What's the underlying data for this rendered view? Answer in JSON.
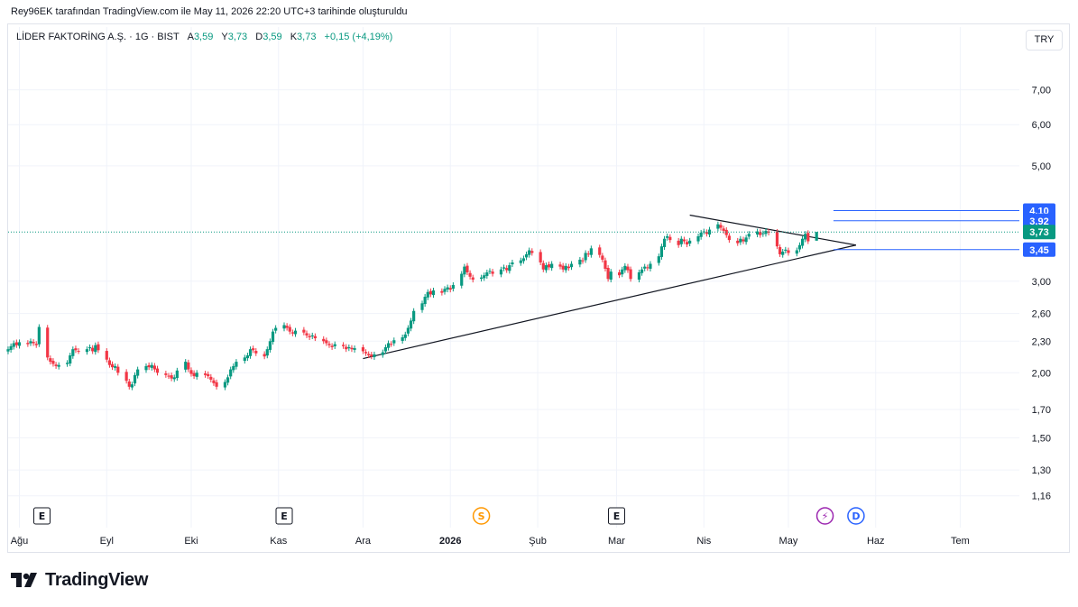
{
  "credit": "Rey96EK tarafından TradingView.com ile May 11, 2026 22:20 UTC+3 tarihinde oluşturuldu",
  "legend": {
    "symbol": "LİDER FAKTORİNG A.Ş. · 1G · BIST",
    "open_label": "A",
    "open": "3,59",
    "high_label": "Y",
    "high": "3,73",
    "low_label": "D",
    "low": "3,59",
    "close_label": "K",
    "close": "3,73",
    "change": "+0,15 (+4,19%)"
  },
  "currency_button": "TRY",
  "brand": "TradingView",
  "colors": {
    "up": "#089981",
    "down": "#f23645",
    "line": "#2962ff",
    "trendline": "#131722"
  },
  "chart_data": {
    "type": "candlestick",
    "title": "LİDER FAKTORİNG A.Ş. · 1G · BIST",
    "y_scale": "log",
    "ylim": [
      1.1,
      8.2
    ],
    "y_ticks": [
      {
        "value": 7.0,
        "label": "7,00"
      },
      {
        "value": 6.0,
        "label": "6,00"
      },
      {
        "value": 5.0,
        "label": "5,00"
      },
      {
        "value": 3.0,
        "label": "3,00"
      },
      {
        "value": 2.6,
        "label": "2,60"
      },
      {
        "value": 2.3,
        "label": "2,30"
      },
      {
        "value": 2.0,
        "label": "2,00"
      },
      {
        "value": 1.7,
        "label": "1,70"
      },
      {
        "value": 1.5,
        "label": "1,50"
      },
      {
        "value": 1.3,
        "label": "1,30"
      },
      {
        "value": 1.16,
        "label": "1,16"
      }
    ],
    "x_axis": {
      "start": "2025-07-28",
      "end": "2026-07-22",
      "ticks": [
        {
          "date": "2025-08-01",
          "label": "Ağu"
        },
        {
          "date": "2025-09-01",
          "label": "Eyl"
        },
        {
          "date": "2025-10-01",
          "label": "Eki"
        },
        {
          "date": "2025-11-01",
          "label": "Kas"
        },
        {
          "date": "2025-12-01",
          "label": "Ara"
        },
        {
          "date": "2026-01-01",
          "label": "2026",
          "bold": true
        },
        {
          "date": "2026-02-01",
          "label": "Şub"
        },
        {
          "date": "2026-03-01",
          "label": "Mar"
        },
        {
          "date": "2026-04-01",
          "label": "Nis"
        },
        {
          "date": "2026-05-01",
          "label": "May"
        },
        {
          "date": "2026-06-01",
          "label": "Haz"
        },
        {
          "date": "2026-07-01",
          "label": "Tem"
        }
      ]
    },
    "candles": [
      {
        "date": "2025-07-28",
        "close": 2.22
      },
      {
        "date": "2025-07-29",
        "close": 2.25
      },
      {
        "date": "2025-07-30",
        "close": 2.28
      },
      {
        "date": "2025-07-31",
        "close": 2.26
      },
      {
        "date": "2025-08-01",
        "close": 2.29
      },
      {
        "date": "2025-08-04",
        "close": 2.27
      },
      {
        "date": "2025-08-05",
        "close": 2.3
      },
      {
        "date": "2025-08-06",
        "close": 2.28
      },
      {
        "date": "2025-08-07",
        "close": 2.26
      },
      {
        "date": "2025-08-08",
        "close": 2.45
      },
      {
        "date": "2025-08-11",
        "close": 2.14
      },
      {
        "date": "2025-08-12",
        "close": 2.1
      },
      {
        "date": "2025-08-13",
        "close": 2.08
      },
      {
        "date": "2025-08-14",
        "close": 2.06
      },
      {
        "date": "2025-08-15",
        "close": 2.07
      },
      {
        "date": "2025-08-18",
        "close": 2.09
      },
      {
        "date": "2025-08-19",
        "close": 2.16
      },
      {
        "date": "2025-08-20",
        "close": 2.22
      },
      {
        "date": "2025-08-21",
        "close": 2.21
      },
      {
        "date": "2025-08-22",
        "close": 2.2
      },
      {
        "date": "2025-08-25",
        "close": 2.22
      },
      {
        "date": "2025-08-26",
        "close": 2.24
      },
      {
        "date": "2025-08-27",
        "close": 2.2
      },
      {
        "date": "2025-08-28",
        "close": 2.26
      },
      {
        "date": "2025-08-29",
        "close": 2.21
      },
      {
        "date": "2025-09-01",
        "close": 2.12
      },
      {
        "date": "2025-09-02",
        "close": 2.07
      },
      {
        "date": "2025-09-03",
        "close": 2.05
      },
      {
        "date": "2025-09-04",
        "close": 2.06
      },
      {
        "date": "2025-09-05",
        "close": 2.0
      },
      {
        "date": "2025-09-08",
        "close": 1.93
      },
      {
        "date": "2025-09-09",
        "close": 1.88
      },
      {
        "date": "2025-09-10",
        "close": 1.9
      },
      {
        "date": "2025-09-11",
        "close": 1.98
      },
      {
        "date": "2025-09-12",
        "close": 2.03
      },
      {
        "date": "2025-09-15",
        "close": 2.06
      },
      {
        "date": "2025-09-16",
        "close": 2.05
      },
      {
        "date": "2025-09-17",
        "close": 2.07
      },
      {
        "date": "2025-09-18",
        "close": 2.03
      },
      {
        "date": "2025-09-19",
        "close": 2.0
      },
      {
        "date": "2025-09-22",
        "close": 1.98
      },
      {
        "date": "2025-09-23",
        "close": 1.97
      },
      {
        "date": "2025-09-24",
        "close": 1.95
      },
      {
        "date": "2025-09-25",
        "close": 1.96
      },
      {
        "date": "2025-09-26",
        "close": 2.02
      },
      {
        "date": "2025-09-29",
        "close": 2.1
      },
      {
        "date": "2025-09-30",
        "close": 2.03
      },
      {
        "date": "2025-10-01",
        "close": 1.99
      },
      {
        "date": "2025-10-02",
        "close": 1.97
      },
      {
        "date": "2025-10-03",
        "close": 2.0
      },
      {
        "date": "2025-10-06",
        "close": 1.98
      },
      {
        "date": "2025-10-07",
        "close": 1.97
      },
      {
        "date": "2025-10-08",
        "close": 1.94
      },
      {
        "date": "2025-10-09",
        "close": 1.91
      },
      {
        "date": "2025-10-10",
        "close": 1.88
      },
      {
        "date": "2025-10-13",
        "close": 1.92
      },
      {
        "date": "2025-10-14",
        "close": 1.96
      },
      {
        "date": "2025-10-15",
        "close": 2.03
      },
      {
        "date": "2025-10-16",
        "close": 2.06
      },
      {
        "date": "2025-10-17",
        "close": 2.1
      },
      {
        "date": "2025-10-20",
        "close": 2.14
      },
      {
        "date": "2025-10-21",
        "close": 2.16
      },
      {
        "date": "2025-10-22",
        "close": 2.22
      },
      {
        "date": "2025-10-23",
        "close": 2.21
      },
      {
        "date": "2025-10-24",
        "close": 2.18
      },
      {
        "date": "2025-10-27",
        "close": 2.15
      },
      {
        "date": "2025-10-28",
        "close": 2.22
      },
      {
        "date": "2025-10-29",
        "close": 2.3
      },
      {
        "date": "2025-10-30",
        "close": 2.4
      },
      {
        "date": "2025-10-31",
        "close": 2.44
      },
      {
        "date": "2025-11-03",
        "close": 2.47
      },
      {
        "date": "2025-11-04",
        "close": 2.44
      },
      {
        "date": "2025-11-05",
        "close": 2.4
      },
      {
        "date": "2025-11-06",
        "close": 2.38
      },
      {
        "date": "2025-11-07",
        "close": 2.41
      },
      {
        "date": "2025-11-10",
        "close": 2.39
      },
      {
        "date": "2025-11-11",
        "close": 2.36
      },
      {
        "date": "2025-11-12",
        "close": 2.34
      },
      {
        "date": "2025-11-13",
        "close": 2.36
      },
      {
        "date": "2025-11-14",
        "close": 2.33
      },
      {
        "date": "2025-11-17",
        "close": 2.3
      },
      {
        "date": "2025-11-18",
        "close": 2.28
      },
      {
        "date": "2025-11-19",
        "close": 2.26
      },
      {
        "date": "2025-11-20",
        "close": 2.24
      },
      {
        "date": "2025-11-21",
        "close": 2.27
      },
      {
        "date": "2025-11-24",
        "close": 2.25
      },
      {
        "date": "2025-11-25",
        "close": 2.22
      },
      {
        "date": "2025-11-26",
        "close": 2.24
      },
      {
        "date": "2025-11-27",
        "close": 2.22
      },
      {
        "date": "2025-11-28",
        "close": 2.23
      },
      {
        "date": "2025-12-01",
        "close": 2.2
      },
      {
        "date": "2025-12-02",
        "close": 2.18
      },
      {
        "date": "2025-12-03",
        "close": 2.16
      },
      {
        "date": "2025-12-04",
        "close": 2.15
      },
      {
        "date": "2025-12-05",
        "close": 2.17
      },
      {
        "date": "2025-12-08",
        "close": 2.19
      },
      {
        "date": "2025-12-09",
        "close": 2.24
      },
      {
        "date": "2025-12-10",
        "close": 2.28
      },
      {
        "date": "2025-12-11",
        "close": 2.27
      },
      {
        "date": "2025-12-12",
        "close": 2.31
      },
      {
        "date": "2025-12-15",
        "close": 2.34
      },
      {
        "date": "2025-12-16",
        "close": 2.37
      },
      {
        "date": "2025-12-17",
        "close": 2.44
      },
      {
        "date": "2025-12-18",
        "close": 2.52
      },
      {
        "date": "2025-12-19",
        "close": 2.63
      },
      {
        "date": "2025-12-22",
        "close": 2.72
      },
      {
        "date": "2025-12-23",
        "close": 2.8
      },
      {
        "date": "2025-12-24",
        "close": 2.86
      },
      {
        "date": "2025-12-25",
        "close": 2.83
      },
      {
        "date": "2025-12-26",
        "close": 2.88
      },
      {
        "date": "2025-12-29",
        "close": 2.85
      },
      {
        "date": "2025-12-30",
        "close": 2.9
      },
      {
        "date": "2025-12-31",
        "close": 2.92
      },
      {
        "date": "2026-01-01",
        "close": 2.89
      },
      {
        "date": "2026-01-02",
        "close": 2.95
      },
      {
        "date": "2026-01-05",
        "close": 3.1
      },
      {
        "date": "2026-01-06",
        "close": 3.2
      },
      {
        "date": "2026-01-07",
        "close": 3.12
      },
      {
        "date": "2026-01-08",
        "close": 3.06
      },
      {
        "date": "2026-01-09",
        "close": 3.02
      },
      {
        "date": "2026-01-12",
        "close": 3.05
      },
      {
        "date": "2026-01-13",
        "close": 3.08
      },
      {
        "date": "2026-01-14",
        "close": 3.12
      },
      {
        "date": "2026-01-15",
        "close": 3.14
      },
      {
        "date": "2026-01-16",
        "close": 3.1
      },
      {
        "date": "2026-01-19",
        "close": 3.16
      },
      {
        "date": "2026-01-20",
        "close": 3.19
      },
      {
        "date": "2026-01-21",
        "close": 3.15
      },
      {
        "date": "2026-01-22",
        "close": 3.22
      },
      {
        "date": "2026-01-23",
        "close": 3.26
      },
      {
        "date": "2026-01-26",
        "close": 3.29
      },
      {
        "date": "2026-01-27",
        "close": 3.32
      },
      {
        "date": "2026-01-28",
        "close": 3.38
      },
      {
        "date": "2026-01-29",
        "close": 3.44
      },
      {
        "date": "2026-01-30",
        "close": 3.4
      },
      {
        "date": "2026-02-02",
        "close": 3.26
      },
      {
        "date": "2026-02-03",
        "close": 3.16
      },
      {
        "date": "2026-02-04",
        "close": 3.22
      },
      {
        "date": "2026-02-05",
        "close": 3.19
      },
      {
        "date": "2026-02-06",
        "close": 3.24
      },
      {
        "date": "2026-02-09",
        "close": 3.2
      },
      {
        "date": "2026-02-10",
        "close": 3.16
      },
      {
        "date": "2026-02-11",
        "close": 3.21
      },
      {
        "date": "2026-02-12",
        "close": 3.18
      },
      {
        "date": "2026-02-13",
        "close": 3.24
      },
      {
        "date": "2026-02-16",
        "close": 3.3
      },
      {
        "date": "2026-02-17",
        "close": 3.28
      },
      {
        "date": "2026-02-18",
        "close": 3.4
      },
      {
        "date": "2026-02-19",
        "close": 3.38
      },
      {
        "date": "2026-02-20",
        "close": 3.47
      },
      {
        "date": "2026-02-23",
        "close": 3.37
      },
      {
        "date": "2026-02-24",
        "close": 3.3
      },
      {
        "date": "2026-02-25",
        "close": 3.17
      },
      {
        "date": "2026-02-26",
        "close": 3.03
      },
      {
        "date": "2026-02-27",
        "close": 3.13
      },
      {
        "date": "2026-03-02",
        "close": 3.08
      },
      {
        "date": "2026-03-03",
        "close": 3.16
      },
      {
        "date": "2026-03-04",
        "close": 3.21
      },
      {
        "date": "2026-03-05",
        "close": 3.15
      },
      {
        "date": "2026-03-06",
        "close": 3.03
      },
      {
        "date": "2026-03-09",
        "close": 3.12
      },
      {
        "date": "2026-03-10",
        "close": 3.16
      },
      {
        "date": "2026-03-11",
        "close": 3.2
      },
      {
        "date": "2026-03-12",
        "close": 3.18
      },
      {
        "date": "2026-03-13",
        "close": 3.24
      },
      {
        "date": "2026-03-16",
        "close": 3.35
      },
      {
        "date": "2026-03-17",
        "close": 3.5
      },
      {
        "date": "2026-03-18",
        "close": 3.62
      },
      {
        "date": "2026-03-19",
        "close": 3.66
      },
      {
        "date": "2026-03-20",
        "close": 3.6
      },
      {
        "date": "2026-03-23",
        "close": 3.52
      },
      {
        "date": "2026-03-24",
        "close": 3.62
      },
      {
        "date": "2026-03-25",
        "close": 3.58
      },
      {
        "date": "2026-03-26",
        "close": 3.53
      },
      {
        "date": "2026-03-27",
        "close": 3.59
      },
      {
        "date": "2026-03-30",
        "close": 3.66
      },
      {
        "date": "2026-03-31",
        "close": 3.72
      },
      {
        "date": "2026-04-01",
        "close": 3.74
      },
      {
        "date": "2026-04-02",
        "close": 3.7
      },
      {
        "date": "2026-04-03",
        "close": 3.77
      },
      {
        "date": "2026-04-06",
        "close": 3.86
      },
      {
        "date": "2026-04-07",
        "close": 3.8
      },
      {
        "date": "2026-04-08",
        "close": 3.75
      },
      {
        "date": "2026-04-09",
        "close": 3.68
      },
      {
        "date": "2026-04-10",
        "close": 3.6
      },
      {
        "date": "2026-04-13",
        "close": 3.55
      },
      {
        "date": "2026-04-14",
        "close": 3.62
      },
      {
        "date": "2026-04-15",
        "close": 3.58
      },
      {
        "date": "2026-04-16",
        "close": 3.64
      },
      {
        "date": "2026-04-17",
        "close": 3.7
      },
      {
        "date": "2026-04-20",
        "close": 3.74
      },
      {
        "date": "2026-04-21",
        "close": 3.68
      },
      {
        "date": "2026-04-22",
        "close": 3.71
      },
      {
        "date": "2026-04-23",
        "close": 3.75
      },
      {
        "date": "2026-04-24",
        "close": 3.72
      },
      {
        "date": "2026-04-27",
        "close": 3.5
      },
      {
        "date": "2026-04-28",
        "close": 3.38
      },
      {
        "date": "2026-04-29",
        "close": 3.42
      },
      {
        "date": "2026-04-30",
        "close": 3.45
      },
      {
        "date": "2026-05-01",
        "close": 3.4
      },
      {
        "date": "2026-05-04",
        "close": 3.44
      },
      {
        "date": "2026-05-05",
        "close": 3.52
      },
      {
        "date": "2026-05-06",
        "close": 3.62
      },
      {
        "date": "2026-05-07",
        "close": 3.7
      },
      {
        "date": "2026-05-08",
        "close": 3.58
      },
      {
        "date": "2026-05-11",
        "open": 3.59,
        "high": 3.73,
        "low": 3.59,
        "close": 3.73
      }
    ],
    "trendlines": [
      {
        "from": {
          "date": "2025-12-01",
          "value": 2.13
        },
        "to": {
          "date": "2026-05-25",
          "value": 3.52
        }
      },
      {
        "from": {
          "date": "2026-03-27",
          "value": 4.02
        },
        "to": {
          "date": "2026-05-25",
          "value": 3.52
        }
      }
    ],
    "horizontal_levels": [
      {
        "value": 4.1,
        "label": "4,10",
        "from_date": "2026-05-17"
      },
      {
        "value": 3.92,
        "label": "3,92",
        "from_date": "2026-05-17"
      },
      {
        "value": 3.45,
        "label": "3,45",
        "from_date": "2026-05-17"
      }
    ],
    "last_price": {
      "value": 3.73,
      "label": "3,73"
    },
    "events": [
      {
        "date": "2025-08-09",
        "symbol": "E",
        "kind": "earnings"
      },
      {
        "date": "2025-11-03",
        "symbol": "E",
        "kind": "earnings"
      },
      {
        "date": "2026-01-12",
        "symbol": "S",
        "kind": "split"
      },
      {
        "date": "2026-03-01",
        "symbol": "E",
        "kind": "earnings"
      },
      {
        "date": "2026-05-14",
        "symbol": "⚡",
        "kind": "news"
      },
      {
        "date": "2026-05-25",
        "symbol": "D",
        "kind": "dividend"
      }
    ]
  }
}
